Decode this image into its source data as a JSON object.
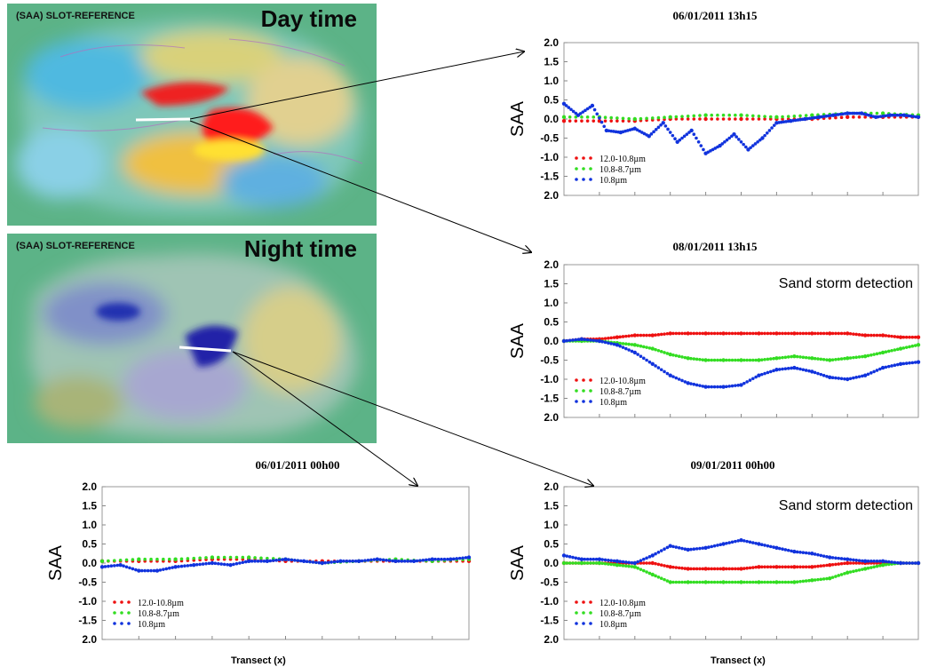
{
  "maps": [
    {
      "label": "(SAA) SLOT-REFERENCE",
      "period": "Day time"
    },
    {
      "label": "(SAA) SLOT-REFERENCE",
      "period": "Night time"
    }
  ],
  "colors": {
    "series1": "#ee1111",
    "series2": "#33dd22",
    "series3": "#1133dd"
  },
  "chart_data": [
    {
      "type": "scatter",
      "title": "06/01/2011 13h15",
      "ylabel": "SAA",
      "xlabel": "",
      "yticks": [
        "2.0",
        "1.5",
        "1.0",
        "0.5",
        "0.0",
        "-0.5",
        "-1.0",
        "-1.5",
        "2.0"
      ],
      "ylim": [
        -2.0,
        2.0
      ],
      "xlim": [
        0,
        100
      ],
      "annotation": "",
      "legend": {
        "position": "bottom-left",
        "entries": [
          "12.0-10.8µm",
          "10.8-8.7µm",
          "10.8µm"
        ]
      },
      "series": [
        {
          "name": "12.0-10.8µm",
          "x": [
            0,
            10,
            20,
            30,
            40,
            50,
            60,
            70,
            80,
            90,
            100
          ],
          "y": [
            -0.05,
            -0.05,
            -0.05,
            0.0,
            0.0,
            0.0,
            0.0,
            0.0,
            0.05,
            0.05,
            0.05
          ]
        },
        {
          "name": "10.8-8.7µm",
          "x": [
            0,
            10,
            20,
            30,
            40,
            50,
            60,
            70,
            80,
            90,
            100
          ],
          "y": [
            0.05,
            0.05,
            0.0,
            0.05,
            0.1,
            0.1,
            0.05,
            0.1,
            0.15,
            0.15,
            0.1
          ]
        },
        {
          "name": "10.8µm",
          "x": [
            0,
            4,
            8,
            12,
            16,
            20,
            24,
            28,
            32,
            36,
            40,
            44,
            48,
            52,
            56,
            60,
            64,
            68,
            72,
            76,
            80,
            84,
            88,
            92,
            96,
            100
          ],
          "y": [
            0.4,
            0.1,
            0.35,
            -0.3,
            -0.35,
            -0.25,
            -0.45,
            -0.1,
            -0.6,
            -0.3,
            -0.9,
            -0.7,
            -0.4,
            -0.8,
            -0.5,
            -0.1,
            -0.05,
            0.0,
            0.05,
            0.1,
            0.15,
            0.15,
            0.05,
            0.1,
            0.1,
            0.05
          ]
        }
      ]
    },
    {
      "type": "scatter",
      "title": "08/01/2011 13h15",
      "ylabel": "SAA",
      "xlabel": "",
      "yticks": [
        "2.0",
        "1.5",
        "1.0",
        "0.5",
        "0.0",
        "-0.5",
        "-1.0",
        "-1.5",
        "2.0"
      ],
      "ylim": [
        -2.0,
        2.0
      ],
      "xlim": [
        0,
        100
      ],
      "annotation": "Sand storm detection",
      "legend": {
        "position": "bottom-left",
        "entries": [
          "12.0-10.8µm",
          "10.8-8.7µm",
          "10.8µm"
        ]
      },
      "series": [
        {
          "name": "12.0-10.8µm",
          "x": [
            0,
            5,
            10,
            15,
            20,
            25,
            30,
            35,
            40,
            45,
            50,
            55,
            60,
            65,
            70,
            75,
            80,
            85,
            90,
            95,
            100
          ],
          "y": [
            0.0,
            0.05,
            0.05,
            0.1,
            0.15,
            0.15,
            0.2,
            0.2,
            0.2,
            0.2,
            0.2,
            0.2,
            0.2,
            0.2,
            0.2,
            0.2,
            0.2,
            0.15,
            0.15,
            0.1,
            0.1
          ]
        },
        {
          "name": "10.8-8.7µm",
          "x": [
            0,
            5,
            10,
            15,
            20,
            25,
            30,
            35,
            40,
            45,
            50,
            55,
            60,
            65,
            70,
            75,
            80,
            85,
            90,
            95,
            100
          ],
          "y": [
            0.0,
            0.0,
            0.0,
            -0.05,
            -0.1,
            -0.2,
            -0.35,
            -0.45,
            -0.5,
            -0.5,
            -0.5,
            -0.5,
            -0.45,
            -0.4,
            -0.45,
            -0.5,
            -0.45,
            -0.4,
            -0.3,
            -0.2,
            -0.1
          ]
        },
        {
          "name": "10.8µm",
          "x": [
            0,
            5,
            10,
            15,
            20,
            25,
            30,
            35,
            40,
            45,
            50,
            55,
            60,
            65,
            70,
            75,
            80,
            85,
            90,
            95,
            100
          ],
          "y": [
            0.0,
            0.05,
            0.0,
            -0.1,
            -0.3,
            -0.6,
            -0.9,
            -1.1,
            -1.2,
            -1.2,
            -1.15,
            -0.9,
            -0.75,
            -0.7,
            -0.8,
            -0.95,
            -1.0,
            -0.9,
            -0.7,
            -0.6,
            -0.55
          ]
        }
      ]
    },
    {
      "type": "scatter",
      "title": "06/01/2011 00h00",
      "ylabel": "SAA",
      "xlabel": "Transect (x)",
      "yticks": [
        "2.0",
        "1.5",
        "1.0",
        "0.5",
        "0.0",
        "-0.5",
        "-1.0",
        "-1.5",
        "2.0"
      ],
      "ylim": [
        -2.0,
        2.0
      ],
      "xlim": [
        0,
        100
      ],
      "annotation": "",
      "legend": {
        "position": "bottom-left",
        "entries": [
          "12.0-10.8µm",
          "10.8-8.7µm",
          "10.8µm"
        ]
      },
      "series": [
        {
          "name": "12.0-10.8µm",
          "x": [
            0,
            10,
            20,
            30,
            40,
            50,
            60,
            70,
            80,
            90,
            100
          ],
          "y": [
            0.05,
            0.05,
            0.05,
            0.1,
            0.1,
            0.05,
            0.05,
            0.05,
            0.05,
            0.05,
            0.05
          ]
        },
        {
          "name": "10.8-8.7µm",
          "x": [
            0,
            10,
            20,
            30,
            40,
            50,
            60,
            70,
            80,
            90,
            100
          ],
          "y": [
            0.05,
            0.1,
            0.1,
            0.15,
            0.15,
            0.1,
            0.0,
            0.05,
            0.1,
            0.05,
            0.1
          ]
        },
        {
          "name": "10.8µm",
          "x": [
            0,
            5,
            10,
            15,
            20,
            25,
            30,
            35,
            40,
            45,
            50,
            55,
            60,
            65,
            70,
            75,
            80,
            85,
            90,
            95,
            100
          ],
          "y": [
            -0.1,
            -0.05,
            -0.2,
            -0.2,
            -0.1,
            -0.05,
            0.0,
            -0.05,
            0.05,
            0.05,
            0.1,
            0.05,
            0.0,
            0.05,
            0.05,
            0.1,
            0.05,
            0.05,
            0.1,
            0.1,
            0.15
          ]
        }
      ]
    },
    {
      "type": "scatter",
      "title": "09/01/2011 00h00",
      "ylabel": "SAA",
      "xlabel": "Transect (x)",
      "yticks": [
        "2.0",
        "1.5",
        "1.0",
        "0.5",
        "0.0",
        "-0.5",
        "-1.0",
        "-1.5",
        "2.0"
      ],
      "ylim": [
        -2.0,
        2.0
      ],
      "xlim": [
        0,
        100
      ],
      "annotation": "Sand storm detection",
      "legend": {
        "position": "bottom-left",
        "entries": [
          "12.0-10.8µm",
          "10.8-8.7µm",
          "10.8µm"
        ]
      },
      "series": [
        {
          "name": "12.0-10.8µm",
          "x": [
            0,
            5,
            10,
            15,
            20,
            25,
            30,
            35,
            40,
            45,
            50,
            55,
            60,
            65,
            70,
            75,
            80,
            85,
            90,
            95,
            100
          ],
          "y": [
            0.0,
            0.0,
            0.0,
            0.0,
            0.0,
            0.0,
            -0.1,
            -0.15,
            -0.15,
            -0.15,
            -0.15,
            -0.1,
            -0.1,
            -0.1,
            -0.1,
            -0.05,
            0.0,
            0.0,
            0.0,
            0.0,
            0.0
          ]
        },
        {
          "name": "10.8-8.7µm",
          "x": [
            0,
            5,
            10,
            15,
            20,
            25,
            30,
            35,
            40,
            45,
            50,
            55,
            60,
            65,
            70,
            75,
            80,
            85,
            90,
            95,
            100
          ],
          "y": [
            0.0,
            0.0,
            0.0,
            -0.05,
            -0.1,
            -0.3,
            -0.5,
            -0.5,
            -0.5,
            -0.5,
            -0.5,
            -0.5,
            -0.5,
            -0.5,
            -0.45,
            -0.4,
            -0.25,
            -0.15,
            -0.05,
            0.0,
            0.0
          ]
        },
        {
          "name": "10.8µm",
          "x": [
            0,
            5,
            10,
            15,
            20,
            25,
            30,
            35,
            40,
            45,
            50,
            55,
            60,
            65,
            70,
            75,
            80,
            85,
            90,
            95,
            100
          ],
          "y": [
            0.2,
            0.1,
            0.1,
            0.05,
            0.0,
            0.2,
            0.45,
            0.35,
            0.4,
            0.5,
            0.6,
            0.5,
            0.4,
            0.3,
            0.25,
            0.15,
            0.1,
            0.05,
            0.05,
            0.0,
            0.0
          ]
        }
      ]
    }
  ]
}
